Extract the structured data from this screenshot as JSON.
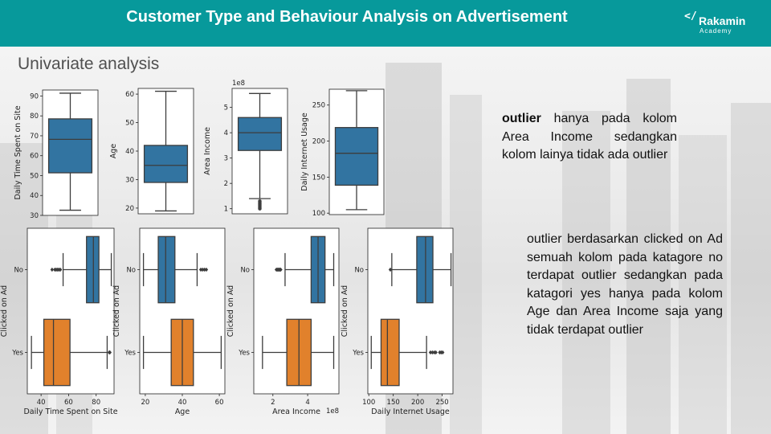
{
  "slide": {
    "title": "Customer Type and Behaviour Analysis on Advertisement",
    "subtitle": "Univariate analysis"
  },
  "logo": {
    "mark": "</",
    "name": "Rakamin",
    "sub": "Academy"
  },
  "notes": {
    "note1_bold": "outlier",
    "note1_rest": " hanya pada kolom Area Income sedangkan kolom lainya tidak ada outlier",
    "note2": "outlier berdasarkan clicked on Ad semuah kolom pada katagore no terdapat outlier sedangkan pada katagori yes hanya pada kolom Age dan Area Income saja yang tidak terdapat outlier"
  },
  "chart_data": [
    {
      "type": "box",
      "orientation": "vertical",
      "ylabel": "Daily Time Spent on Site",
      "ylim": [
        30,
        93
      ],
      "yticks": [
        30,
        40,
        50,
        60,
        70,
        80,
        90
      ],
      "box": {
        "min": 32.6,
        "q1": 51.4,
        "median": 68.2,
        "q3": 78.5,
        "max": 91.4,
        "outliers": []
      }
    },
    {
      "type": "box",
      "orientation": "vertical",
      "ylabel": "Age",
      "ylim": [
        18,
        62
      ],
      "yticks": [
        20,
        30,
        40,
        50,
        60
      ],
      "box": {
        "min": 19,
        "q1": 29,
        "median": 35,
        "q3": 42,
        "max": 61,
        "outliers": []
      }
    },
    {
      "type": "box",
      "orientation": "vertical",
      "ylabel": "Area Income",
      "multiplier": "1e8",
      "ylim": [
        0.8,
        5.75
      ],
      "yticks": [
        1,
        2,
        3,
        4,
        5
      ],
      "box": {
        "min": 1.4,
        "q1": 3.3,
        "median": 4.0,
        "q3": 4.6,
        "max": 5.55,
        "outliers": [
          1.3,
          1.25,
          1.2,
          1.15,
          1.1,
          1.05,
          1.0
        ]
      }
    },
    {
      "type": "box",
      "orientation": "vertical",
      "ylabel": "Daily Internet Usage",
      "ylim": [
        98,
        272
      ],
      "yticks": [
        100,
        150,
        200,
        250
      ],
      "box": {
        "min": 104.8,
        "q1": 138.8,
        "median": 183.1,
        "q3": 218.8,
        "max": 269.9,
        "outliers": []
      }
    },
    {
      "type": "box",
      "orientation": "horizontal",
      "xlabel": "Daily Time Spent on Site",
      "ylabel": "Clicked on Ad",
      "categories": [
        "No",
        "Yes"
      ],
      "xlim": [
        30,
        93
      ],
      "xticks": [
        40,
        60,
        80
      ],
      "boxes": [
        {
          "category": "No",
          "min": 56,
          "q1": 73,
          "median": 78,
          "q3": 82,
          "max": 91,
          "outliers": [
            48,
            50,
            51,
            52,
            53,
            54
          ]
        },
        {
          "category": "Yes",
          "min": 33,
          "q1": 42,
          "median": 49,
          "q3": 61,
          "max": 88,
          "outliers": [
            89.5,
            90
          ]
        }
      ]
    },
    {
      "type": "box",
      "orientation": "horizontal",
      "xlabel": "Age",
      "ylabel": "Clicked on Ad",
      "categories": [
        "No",
        "Yes"
      ],
      "xlim": [
        17,
        63
      ],
      "xticks": [
        20,
        40,
        60
      ],
      "boxes": [
        {
          "category": "No",
          "min": 19,
          "q1": 27,
          "median": 31,
          "q3": 36,
          "max": 48,
          "outliers": [
            50,
            51,
            52,
            53
          ]
        },
        {
          "category": "Yes",
          "min": 19,
          "q1": 34,
          "median": 40,
          "q3": 46,
          "max": 61,
          "outliers": []
        }
      ]
    },
    {
      "type": "box",
      "orientation": "horizontal",
      "xlabel": "Area Income",
      "ylabel": "Clicked on Ad",
      "multiplier": "1e8",
      "categories": [
        "No",
        "Yes"
      ],
      "xlim": [
        0.9,
        5.8
      ],
      "xticks": [
        2,
        4
      ],
      "boxes": [
        {
          "category": "No",
          "min": 2.7,
          "q1": 4.2,
          "median": 4.6,
          "q3": 5.0,
          "max": 5.5,
          "outliers": [
            2.2,
            2.25,
            2.3,
            2.35,
            2.4,
            2.45
          ]
        },
        {
          "category": "Yes",
          "min": 1.4,
          "q1": 2.8,
          "median": 3.5,
          "q3": 4.2,
          "max": 5.5,
          "outliers": []
        }
      ]
    },
    {
      "type": "box",
      "orientation": "horizontal",
      "xlabel": "Daily Internet Usage",
      "ylabel": "Clicked on Ad",
      "categories": [
        "No",
        "Yes"
      ],
      "xlim": [
        98,
        272
      ],
      "xticks": [
        100,
        150,
        200,
        250
      ],
      "boxes": [
        {
          "category": "No",
          "min": 147,
          "q1": 198,
          "median": 216,
          "q3": 231,
          "max": 268,
          "outliers": [
            144
          ]
        },
        {
          "category": "Yes",
          "min": 105,
          "q1": 125,
          "median": 138,
          "q3": 162,
          "max": 218,
          "outliers": [
            226,
            230,
            234,
            237,
            245,
            248,
            251
          ]
        }
      ]
    }
  ],
  "colors": {
    "header": "#07999b",
    "box_blue": "#3274a1",
    "box_orange": "#e1812c",
    "line": "#3d3d3d"
  }
}
